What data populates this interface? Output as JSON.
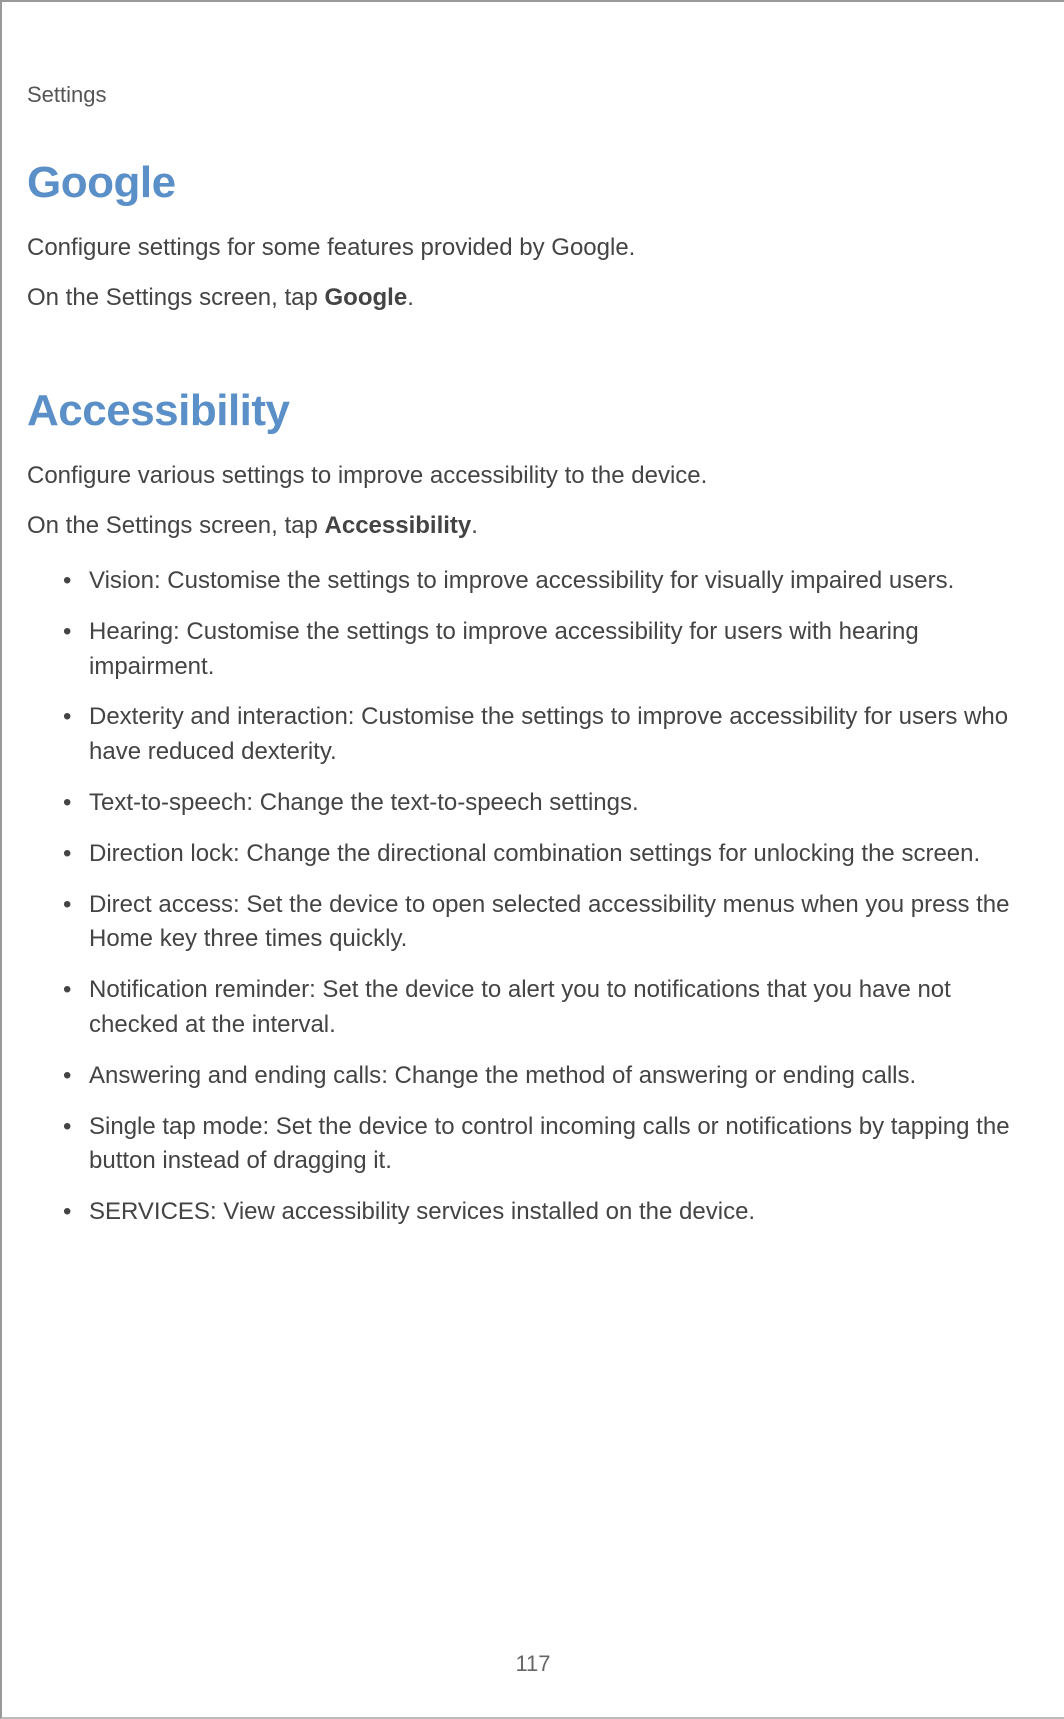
{
  "header": {
    "label": "Settings"
  },
  "sections": {
    "google": {
      "heading": "Google",
      "desc1": "Configure settings for some features provided by Google.",
      "desc2_pre": "On the Settings screen, tap ",
      "desc2_bold": "Google",
      "desc2_post": "."
    },
    "accessibility": {
      "heading": "Accessibility",
      "desc1": "Configure various settings to improve accessibility to the device.",
      "desc2_pre": "On the Settings screen, tap ",
      "desc2_bold": "Accessibility",
      "desc2_post": ".",
      "items": {
        "vision_bold": "Vision",
        "vision_text": ": Customise the settings to improve accessibility for visually impaired users.",
        "hearing_bold": "Hearing",
        "hearing_text": ": Customise the settings to improve accessibility for users with hearing impairment.",
        "dexterity_bold": "Dexterity and interaction",
        "dexterity_text": ": Customise the settings to improve accessibility for users who have reduced dexterity.",
        "tts_bold": "Text-to-speech",
        "tts_text": ": Change the text-to-speech settings.",
        "direction_bold": "Direction lock",
        "direction_text": ": Change the directional combination settings for unlocking the screen.",
        "direct_bold": "Direct access",
        "direct_text": ": Set the device to open selected accessibility menus when you press the Home key three times quickly.",
        "notif_bold": "Notification reminder",
        "notif_text": ": Set the device to alert you to notifications that you have not checked at the interval.",
        "calls_bold": "Answering and ending calls",
        "calls_text": ": Change the method of answering or ending calls.",
        "tap_bold": "Single tap mode",
        "tap_text": ": Set the device to control incoming calls or notifications by tapping the button instead of dragging it.",
        "services_bold": "SERVICES",
        "services_text": ": View accessibility services installed on the device."
      }
    }
  },
  "page_number": "117",
  "colors": {
    "heading_color": "#5a8fc7",
    "body_color": "#444444",
    "header_label_color": "#555555"
  },
  "typography": {
    "heading_fontsize": 44,
    "body_fontsize": 24,
    "header_fontsize": 22
  }
}
